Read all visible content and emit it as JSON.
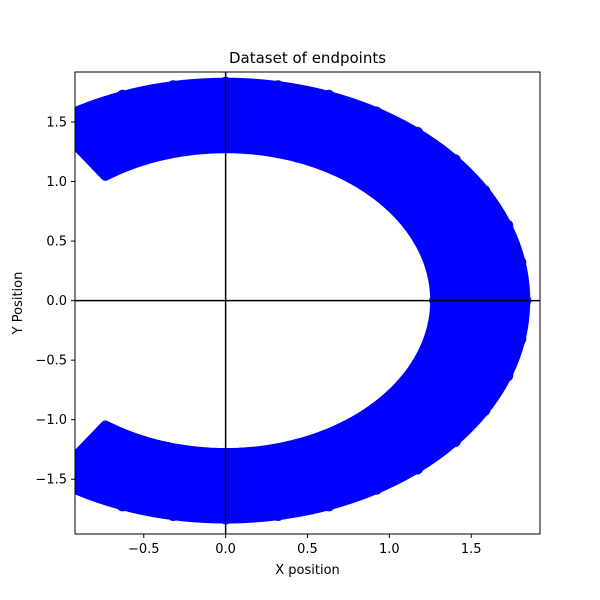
{
  "chart_data": {
    "type": "scatter",
    "title": "Dataset of endpoints",
    "xlabel": "X position",
    "ylabel": "Y Position",
    "xlim": [
      -0.92,
      1.92
    ],
    "ylim": [
      -1.96,
      1.92
    ],
    "xticks": [
      -0.5,
      0.0,
      0.5,
      1.0,
      1.5
    ],
    "xtick_labels": [
      "−0.5",
      "0.0",
      "0.5",
      "1.0",
      "1.5"
    ],
    "yticks": [
      -1.5,
      -1.0,
      -0.5,
      0.0,
      0.5,
      1.0,
      1.5
    ],
    "ytick_labels": [
      "−1.5",
      "−1.0",
      "−0.5",
      "0.0",
      "0.5",
      "1.0",
      "1.5"
    ],
    "grid": false,
    "reference_lines": {
      "x": 0.0,
      "y": 0.0,
      "color": "#000000"
    },
    "series": [
      {
        "color": "#0000ff",
        "shape": "annulus-arc",
        "center": [
          0.0,
          0.0
        ],
        "inner_radius": 1.28,
        "outer_radius": 1.83,
        "angle_range_deg": [
          -125,
          125
        ],
        "points": [
          [
            1.83,
            0.0
          ],
          [
            1.8,
            0.32
          ],
          [
            1.72,
            0.63
          ],
          [
            1.58,
            0.92
          ],
          [
            1.4,
            1.18
          ],
          [
            1.17,
            1.41
          ],
          [
            0.92,
            1.58
          ],
          [
            0.63,
            1.72
          ],
          [
            0.32,
            1.8
          ],
          [
            0.0,
            1.83
          ],
          [
            -0.32,
            1.8
          ],
          [
            -0.63,
            1.72
          ],
          [
            -0.75,
            1.12
          ],
          [
            -0.7,
            1.1
          ],
          [
            0.0,
            1.3
          ],
          [
            0.5,
            1.2
          ],
          [
            0.9,
            0.95
          ],
          [
            1.15,
            0.6
          ],
          [
            1.27,
            0.2
          ],
          [
            1.28,
            0.0
          ],
          [
            1.27,
            -0.2
          ],
          [
            1.15,
            -0.6
          ],
          [
            0.9,
            -0.95
          ],
          [
            0.5,
            -1.2
          ],
          [
            0.0,
            -1.3
          ],
          [
            -0.7,
            -1.1
          ],
          [
            -0.75,
            -1.22
          ],
          [
            -0.63,
            -1.72
          ],
          [
            -0.32,
            -1.8
          ],
          [
            0.0,
            -1.83
          ],
          [
            0.32,
            -1.8
          ],
          [
            0.63,
            -1.72
          ],
          [
            0.92,
            -1.58
          ],
          [
            1.17,
            -1.41
          ],
          [
            1.4,
            -1.18
          ],
          [
            1.58,
            -0.92
          ],
          [
            1.72,
            -0.63
          ],
          [
            1.8,
            -0.32
          ],
          [
            1.55,
            0.0
          ],
          [
            1.5,
            0.55
          ],
          [
            1.25,
            1.0
          ],
          [
            0.8,
            1.4
          ],
          [
            0.2,
            1.55
          ],
          [
            -0.4,
            1.5
          ],
          [
            -0.4,
            -1.5
          ],
          [
            0.2,
            -1.55
          ],
          [
            0.8,
            -1.4
          ],
          [
            1.25,
            -1.0
          ],
          [
            1.5,
            -0.55
          ],
          [
            -0.35,
            -1.5
          ]
        ]
      }
    ]
  }
}
